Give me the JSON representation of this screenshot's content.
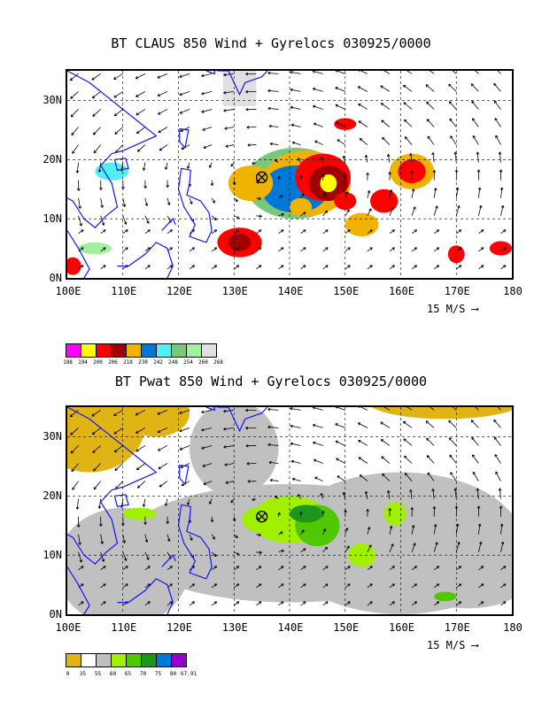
{
  "panels": [
    {
      "title": "BT CLAUS 850 Wind + Gyrelocs 030925/0000",
      "lat_labels": [
        "30N",
        "20N",
        "10N",
        "0N"
      ],
      "lon_labels": [
        "100E",
        "110E",
        "120E",
        "130E",
        "140E",
        "150E",
        "160E",
        "170E",
        "180"
      ],
      "ref_vector": "15 M/S",
      "legend_colors": [
        "#ff00ff",
        "#ffff00",
        "#ff0000",
        "#a00000",
        "#f0b400",
        "#0078d8",
        "#50f0f0",
        "#78c878",
        "#a0f0a0",
        "#e0e0e0"
      ],
      "legend_labels": [
        "188",
        "194",
        "200",
        "206",
        "218",
        "230",
        "242",
        "248",
        "254",
        "260",
        "268"
      ]
    },
    {
      "title": "BT Pwat 850 Wind + Gyrelocs 030925/0000",
      "lat_labels": [
        "30N",
        "20N",
        "10N",
        "0N"
      ],
      "lon_labels": [
        "100E",
        "110E",
        "120E",
        "130E",
        "140E",
        "150E",
        "160E",
        "170E",
        "180"
      ],
      "ref_vector": "15 M/S",
      "legend_colors": [
        "#e0b414",
        "#ffffff",
        "#c0c0c0",
        "#a0f000",
        "#50c800",
        "#1e961e",
        "#0078d8",
        "#9600c8"
      ],
      "legend_labels": [
        "0",
        "35",
        "55",
        "60",
        "65",
        "70",
        "75",
        "80",
        "67.91"
      ]
    }
  ],
  "chart_data": [
    {
      "type": "map",
      "title": "BT CLAUS 850 Wind + Gyrelocs 030925/0000",
      "xlim": [
        100,
        180
      ],
      "ylim": [
        0,
        35
      ],
      "gyre_center": [
        135,
        17
      ]
    },
    {
      "type": "map",
      "title": "BT Pwat 850 Wind + Gyrelocs 030925/0000",
      "xlim": [
        100,
        180
      ],
      "ylim": [
        0,
        35
      ],
      "gyre_center": [
        135,
        16.5
      ]
    }
  ]
}
